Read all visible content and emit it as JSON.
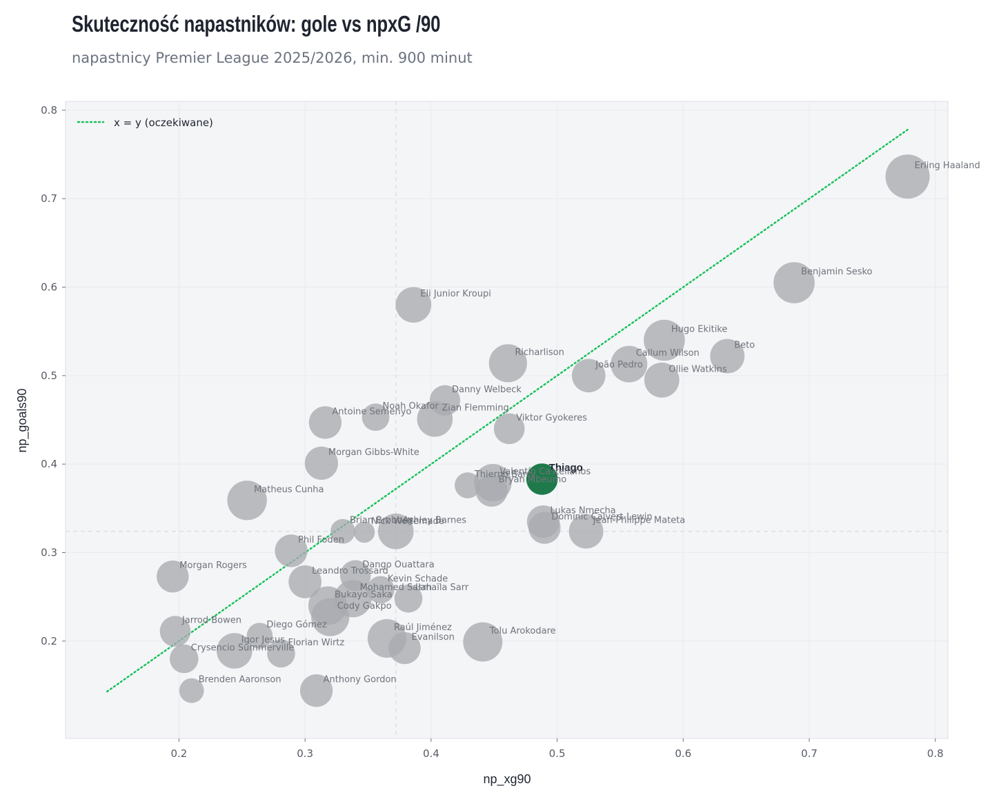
{
  "title": "Skuteczność napastników: gole vs npxG /90",
  "subtitle": "napastnicy Premier League 2025/2026, min. 900 minut",
  "colors": {
    "bubble": "#a8aab0",
    "highlight": "#1e7a4a",
    "reference_line": "#16c25a",
    "panel": "#f4f5f7",
    "median_line": "#dcdde2"
  },
  "chart_data": {
    "type": "scatter",
    "title": "Skuteczność napastników: gole vs npxG /90",
    "subtitle": "napastnicy Premier League 2025/2026, min. 900 minut",
    "xlabel": "np_xg90",
    "ylabel": "np_goals90",
    "xlim": [
      0.11,
      0.81
    ],
    "ylim": [
      0.09,
      0.81
    ],
    "xticks": [
      0.2,
      0.3,
      0.4,
      0.5,
      0.6,
      0.7,
      0.8
    ],
    "yticks": [
      0.2,
      0.3,
      0.4,
      0.5,
      0.6,
      0.7,
      0.8
    ],
    "grid": true,
    "legend": {
      "position": "top-left",
      "entries": [
        "x = y (oczekiwane)"
      ]
    },
    "reference_line": {
      "label": "x = y (oczekiwane)",
      "from": 0.143,
      "to": 0.778,
      "style": "dotted"
    },
    "median_lines": {
      "x": 0.372,
      "y": 0.324
    },
    "highlight": "Thiago",
    "points": [
      {
        "name": "Erling Haaland",
        "x": 0.778,
        "y": 0.725,
        "size": 1.0
      },
      {
        "name": "Benjamin Sesko",
        "x": 0.688,
        "y": 0.605,
        "size": 0.9
      },
      {
        "name": "Eli Junior Kroupi",
        "x": 0.386,
        "y": 0.58,
        "size": 0.72
      },
      {
        "name": "Hugo Ekitike",
        "x": 0.585,
        "y": 0.54,
        "size": 0.9
      },
      {
        "name": "Beto",
        "x": 0.635,
        "y": 0.522,
        "size": 0.68
      },
      {
        "name": "Richarlison",
        "x": 0.461,
        "y": 0.514,
        "size": 0.8
      },
      {
        "name": "Callum Wilson",
        "x": 0.557,
        "y": 0.513,
        "size": 0.75
      },
      {
        "name": "João Pedro",
        "x": 0.525,
        "y": 0.5,
        "size": 0.65
      },
      {
        "name": "Ollie Watkins",
        "x": 0.583,
        "y": 0.495,
        "size": 0.7
      },
      {
        "name": "Danny Welbeck",
        "x": 0.411,
        "y": 0.472,
        "size": 0.55
      },
      {
        "name": "Noah Okafor",
        "x": 0.356,
        "y": 0.453,
        "size": 0.45
      },
      {
        "name": "Zian Flemming",
        "x": 0.403,
        "y": 0.451,
        "size": 0.72
      },
      {
        "name": "Antoine Semenyo",
        "x": 0.316,
        "y": 0.447,
        "size": 0.62
      },
      {
        "name": "Viktor Gyokeres",
        "x": 0.462,
        "y": 0.44,
        "size": 0.56
      },
      {
        "name": "Morgan Gibbs-White",
        "x": 0.313,
        "y": 0.401,
        "size": 0.64
      },
      {
        "name": "Thiago",
        "x": 0.488,
        "y": 0.383,
        "size": 0.58
      },
      {
        "name": "Valentín Castellanos",
        "x": 0.449,
        "y": 0.379,
        "size": 0.78
      },
      {
        "name": "Thierno Barry",
        "x": 0.429,
        "y": 0.376,
        "size": 0.4
      },
      {
        "name": "Bryan Mbeumo",
        "x": 0.448,
        "y": 0.37,
        "size": 0.6
      },
      {
        "name": "Matheus Cunha",
        "x": 0.254,
        "y": 0.359,
        "size": 0.85
      },
      {
        "name": "Lukas Nmecha",
        "x": 0.489,
        "y": 0.335,
        "size": 0.62
      },
      {
        "name": "Dominic Calvert-Lewin",
        "x": 0.49,
        "y": 0.328,
        "size": 0.6
      },
      {
        "name": "Jean-Philippe Mateta",
        "x": 0.523,
        "y": 0.324,
        "size": 0.68
      },
      {
        "name": "Ashley Barnes",
        "x": 0.372,
        "y": 0.324,
        "size": 0.72
      },
      {
        "name": "Brian Brobbey",
        "x": 0.33,
        "y": 0.324,
        "size": 0.36
      },
      {
        "name": "Nick Woltemade",
        "x": 0.347,
        "y": 0.323,
        "size": 0.24
      },
      {
        "name": "Phil Foden",
        "x": 0.289,
        "y": 0.302,
        "size": 0.62
      },
      {
        "name": "Dango Ouattara",
        "x": 0.34,
        "y": 0.274,
        "size": 0.56
      },
      {
        "name": "Morgan Rogers",
        "x": 0.195,
        "y": 0.273,
        "size": 0.6
      },
      {
        "name": "Leandro Trossard",
        "x": 0.3,
        "y": 0.267,
        "size": 0.63
      },
      {
        "name": "Kevin Schade",
        "x": 0.36,
        "y": 0.258,
        "size": 0.45
      },
      {
        "name": "Mohamed Salah",
        "x": 0.338,
        "y": 0.248,
        "size": 0.78
      },
      {
        "name": "Ismaïla Sarr",
        "x": 0.382,
        "y": 0.248,
        "size": 0.47
      },
      {
        "name": "Bukayo Saka",
        "x": 0.318,
        "y": 0.24,
        "size": 0.82
      },
      {
        "name": "Cody Gakpo",
        "x": 0.32,
        "y": 0.227,
        "size": 0.8
      },
      {
        "name": "Jarrod Bowen",
        "x": 0.197,
        "y": 0.211,
        "size": 0.56
      },
      {
        "name": "Diego Gómez",
        "x": 0.264,
        "y": 0.206,
        "size": 0.4
      },
      {
        "name": "Raúl Jiménez",
        "x": 0.365,
        "y": 0.203,
        "size": 0.82
      },
      {
        "name": "Tolu Arokodare",
        "x": 0.441,
        "y": 0.199,
        "size": 0.84
      },
      {
        "name": "Evanilson",
        "x": 0.379,
        "y": 0.192,
        "size": 0.6
      },
      {
        "name": "Igor Jesus",
        "x": 0.244,
        "y": 0.189,
        "size": 0.72
      },
      {
        "name": "Florian Wirtz",
        "x": 0.281,
        "y": 0.186,
        "size": 0.47
      },
      {
        "name": "Crysencio Summerville",
        "x": 0.204,
        "y": 0.18,
        "size": 0.49
      },
      {
        "name": "Brenden Aaronson",
        "x": 0.21,
        "y": 0.144,
        "size": 0.36
      },
      {
        "name": "Anthony Gordon",
        "x": 0.309,
        "y": 0.144,
        "size": 0.62
      }
    ]
  }
}
